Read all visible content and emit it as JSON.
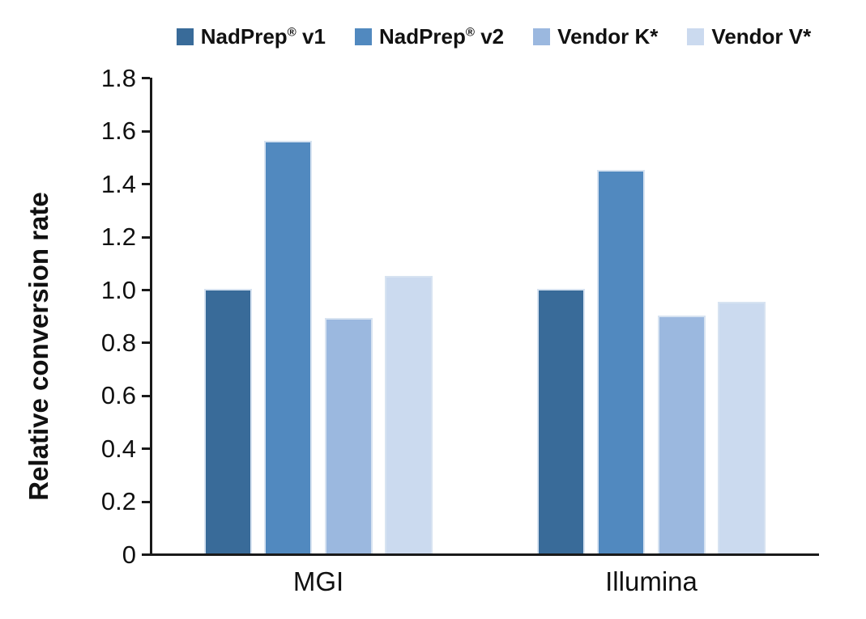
{
  "chart_data": {
    "type": "bar",
    "title": "",
    "ylabel": "Relative conversion rate",
    "xlabel": "",
    "categories": [
      "MGI",
      "Illumina"
    ],
    "series": [
      {
        "name": "NadPrep® v1",
        "color": "#396b99",
        "values": [
          1.0,
          1.0
        ]
      },
      {
        "name": "NadPrep® v2",
        "color": "#5189bf",
        "values": [
          1.56,
          1.45
        ]
      },
      {
        "name": "Vendor K*",
        "color": "#9bb8df",
        "values": [
          0.89,
          0.9
        ]
      },
      {
        "name": "Vendor V*",
        "color": "#cbdaef",
        "values": [
          1.05,
          0.95
        ]
      }
    ],
    "ylim": [
      0,
      1.8
    ],
    "ytick_step": 0.2,
    "ytick_labels": [
      "1.8",
      "1.6",
      "1.4",
      "1.2",
      "1.0",
      "0.8",
      "0.6",
      "0.4",
      "0.2",
      "0"
    ],
    "grid": false,
    "legend_position": "top",
    "axis_color": "#1a1a1a",
    "text_color": "#111111",
    "bar_outline_color": "#d7e3f1"
  }
}
